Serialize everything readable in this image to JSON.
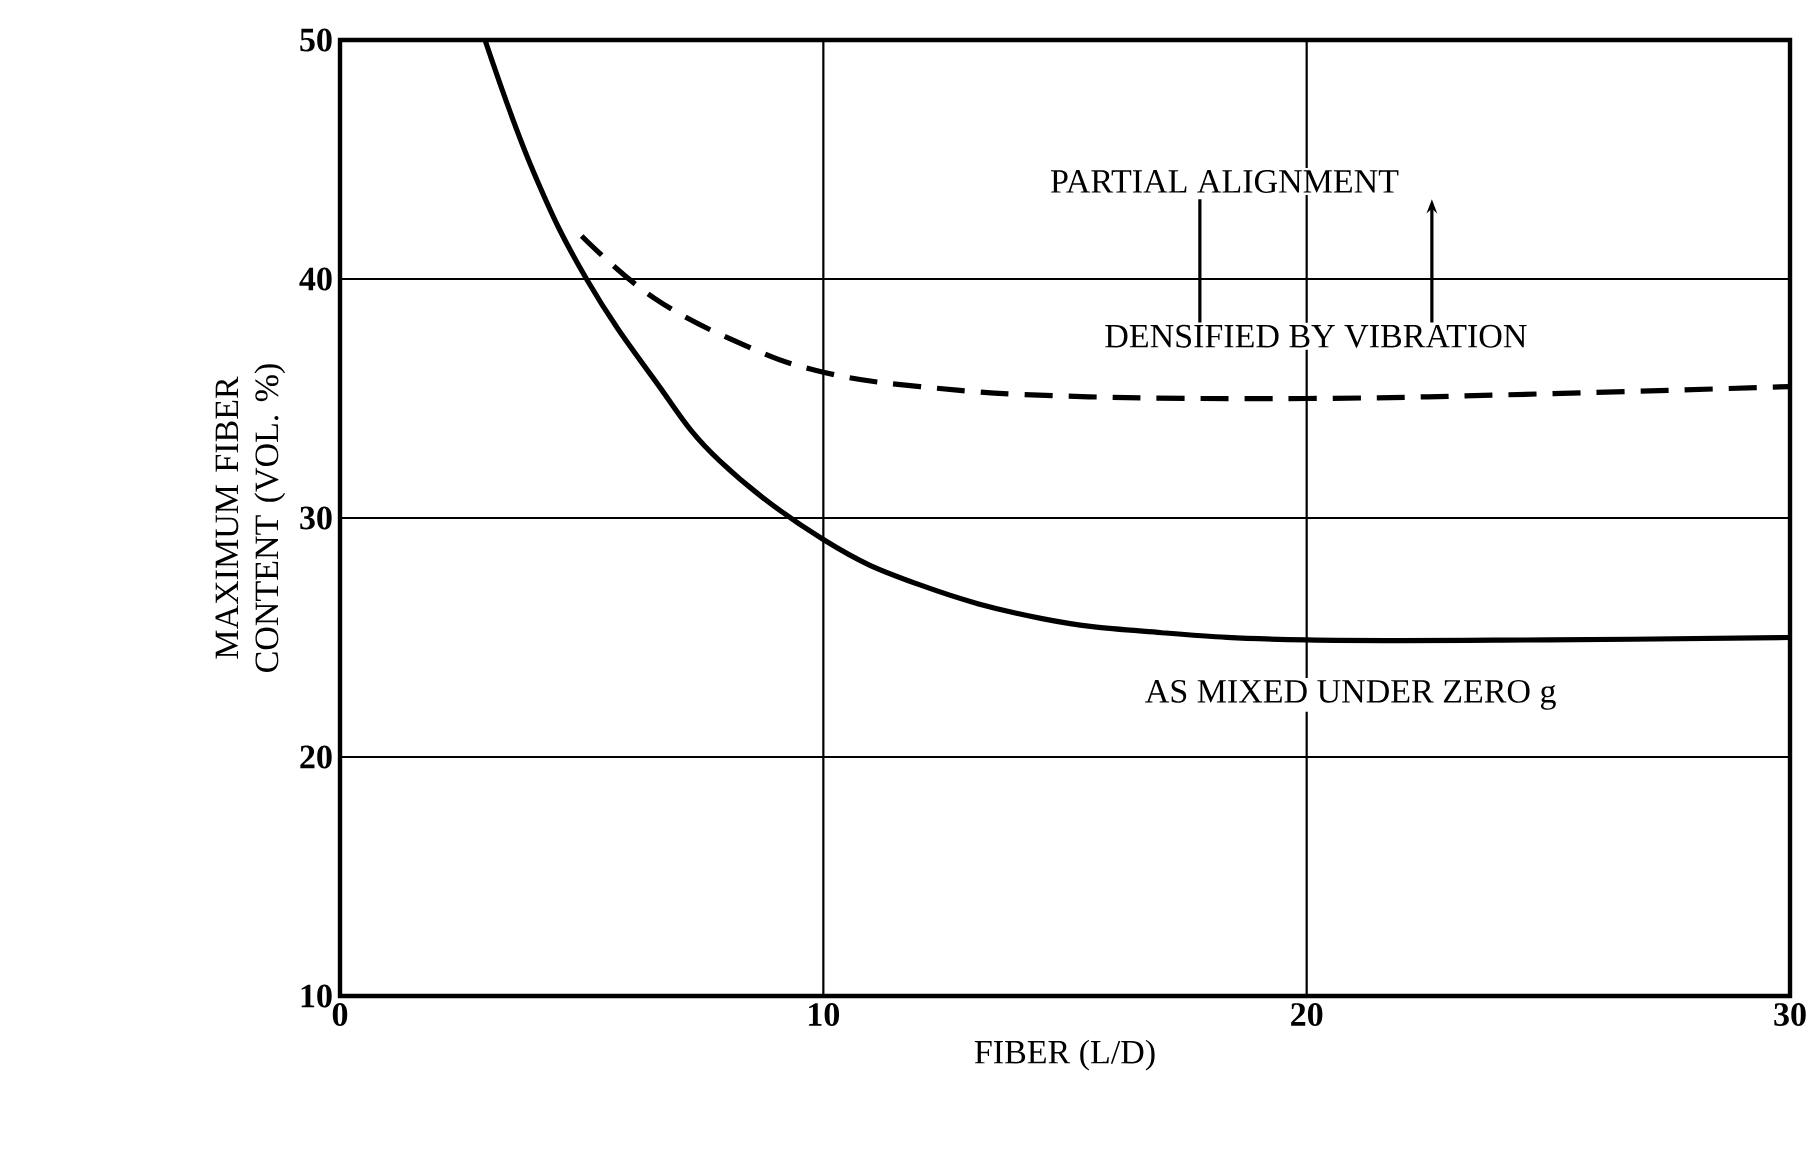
{
  "chart_data": {
    "type": "line",
    "xlabel": "FIBER (L/D)",
    "ylabel": "MAXIMUM FIBER CONTENT (VOL. %)",
    "xlim": [
      0,
      30
    ],
    "ylim": [
      10,
      50
    ],
    "xticks": [
      0,
      10,
      20,
      30
    ],
    "yticks": [
      10,
      20,
      30,
      40,
      50
    ],
    "grid": true,
    "series": [
      {
        "color": "#000000",
        "line_style": "solid",
        "x": [
          3.0,
          4.0,
          5.1,
          6.5,
          7.85,
          10,
          12,
          14.5,
          17,
          20,
          25,
          30
        ],
        "values": [
          50,
          44.5,
          40,
          35.8,
          32.4,
          29.1,
          27.2,
          25.8,
          25.2,
          24.9,
          24.9,
          25.0
        ]
      },
      {
        "color": "#000000",
        "line_style": "dashed",
        "x": [
          5.0,
          6.5,
          8.4,
          10,
          12,
          15,
          20,
          25,
          30
        ],
        "values": [
          41.8,
          39.2,
          37.2,
          36.1,
          35.5,
          35.1,
          35.0,
          35.2,
          35.5
        ]
      }
    ],
    "annotations": [
      "PARTIAL ALIGNMENT",
      "DENSIFIED BY VIBRATION",
      "AS MIXED UNDER ZERO g"
    ]
  }
}
